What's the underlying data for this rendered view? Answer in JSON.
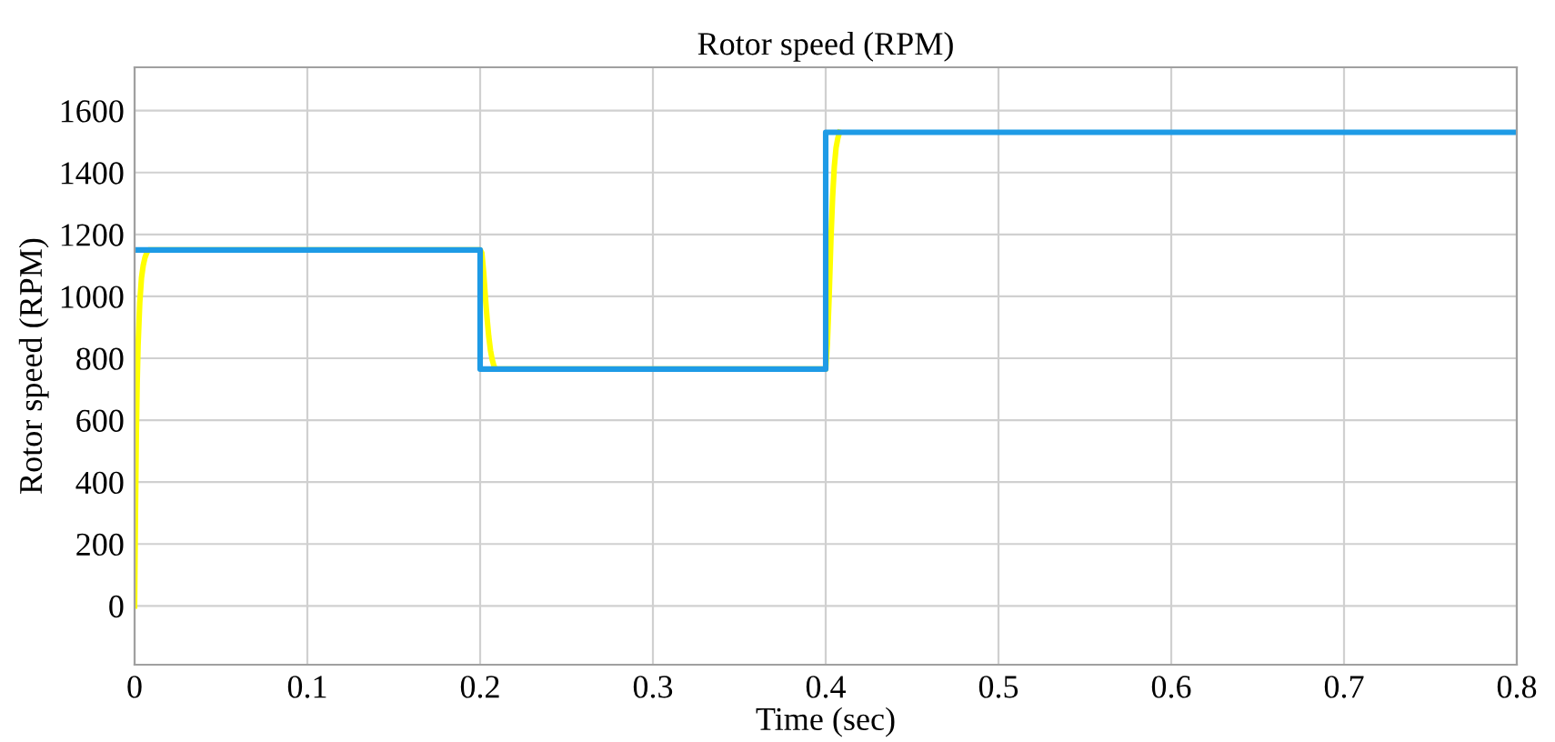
{
  "chart_data": {
    "type": "line",
    "title": "Rotor speed (RPM)",
    "xlabel": "Time (sec)",
    "ylabel": "Rotor speed (RPM)",
    "series": [
      {
        "color": "#ffff00",
        "x": [
          0,
          0.0005,
          0.001,
          0.0015,
          0.002,
          0.003,
          0.004,
          0.005,
          0.006,
          0.007,
          0.008,
          0.2,
          0.201,
          0.202,
          0.203,
          0.204,
          0.205,
          0.206,
          0.207,
          0.208,
          0.209,
          0.4,
          0.401,
          0.402,
          0.403,
          0.404,
          0.405,
          0.406,
          0.407,
          0.408
        ],
        "values": [
          0,
          300,
          550,
          720,
          840,
          980,
          1060,
          1100,
          1125,
          1140,
          1150,
          1150,
          1140,
          1080,
          1000,
          930,
          870,
          825,
          795,
          775,
          765,
          765,
          850,
          1000,
          1180,
          1320,
          1420,
          1480,
          1510,
          1530
        ]
      },
      {
        "color": "#1e9be6",
        "x": [
          0,
          0.2,
          0.2,
          0.4,
          0.4,
          0.8
        ],
        "values": [
          1150,
          1150,
          765,
          765,
          1530,
          1530
        ]
      }
    ],
    "xlim": [
      0,
      0.8
    ],
    "ylim": [
      -190,
      1740
    ],
    "xticks": [
      0,
      0.1,
      0.2,
      0.3,
      0.4,
      0.5,
      0.6,
      0.7,
      0.8
    ],
    "yticks": [
      0,
      200,
      400,
      600,
      800,
      1000,
      1200,
      1400,
      1600
    ],
    "grid": true,
    "legend": false,
    "line_style": "solid",
    "marker": "none"
  }
}
